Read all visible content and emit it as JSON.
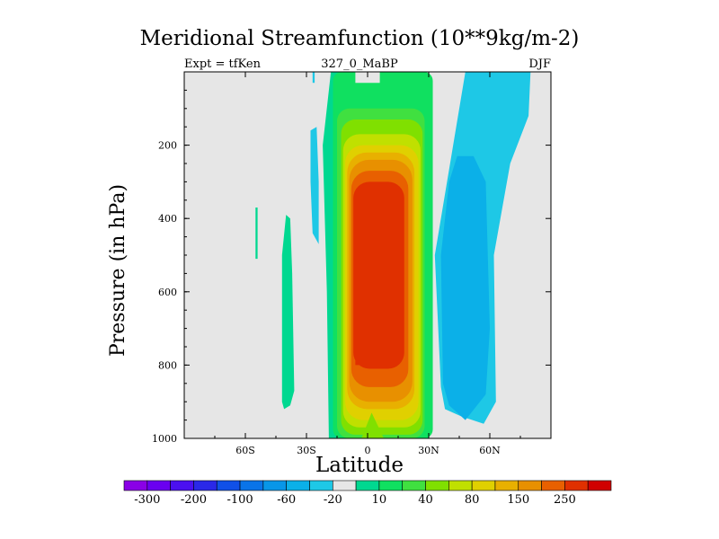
{
  "chart_data": {
    "type": "heatmap",
    "title": "Meridional Streamfunction (10**9kg/m-2)",
    "left_string": "Expt = tfKen",
    "center_string": "327_0_MaBP",
    "right_string": "DJF",
    "xlabel": "Latitude",
    "ylabel": "Pressure (in hPa)",
    "xlim": [
      -90,
      90
    ],
    "ylim": [
      1000,
      0
    ],
    "x_ticks": [
      -60,
      -30,
      0,
      30,
      60
    ],
    "x_tick_labels": [
      "60S",
      "30S",
      "0",
      "30N",
      "60N"
    ],
    "y_ticks": [
      200,
      400,
      600,
      800,
      1000
    ],
    "y_tick_labels": [
      "200",
      "400",
      "600",
      "800",
      "1000"
    ],
    "background_color": "#e6e6e6",
    "colorbar": {
      "levels": [
        -300,
        -250,
        -200,
        -150,
        -100,
        -80,
        -60,
        -40,
        -20,
        -10,
        10,
        20,
        40,
        60,
        80,
        100,
        150,
        200,
        250,
        300
      ],
      "labels": [
        "-300",
        "-200",
        "-100",
        "-60",
        "-20",
        "10",
        "40",
        "80",
        "150",
        "250"
      ],
      "colors": [
        "#8a00e6",
        "#6a00f0",
        "#4b10f0",
        "#2a28e8",
        "#1050e8",
        "#0a74e8",
        "#0896e8",
        "#0bb0e8",
        "#1ec8e6",
        "#e6e6e6",
        "#00d890",
        "#10e060",
        "#40e040",
        "#80e000",
        "#c0e000",
        "#e0d000",
        "#e8b000",
        "#e89000",
        "#e86000",
        "#e03000",
        "#d00000"
      ]
    },
    "features": [
      {
        "name": "NH Hadley cell",
        "sign": "positive",
        "x_range": [
          -12,
          26
        ],
        "p_range": [
          0,
          1000
        ],
        "max_level": 250
      },
      {
        "name": "NH Ferrel cell",
        "sign": "negative",
        "x_range": [
          30,
          70
        ],
        "p_range": [
          0,
          960
        ],
        "min_level": -20
      },
      {
        "name": "SH weak positive cell",
        "sign": "positive",
        "x_range": [
          -42,
          -36
        ],
        "p_range": [
          380,
          920
        ],
        "max_level": 10
      },
      {
        "name": "SH weak negative cell",
        "sign": "negative",
        "x_range": [
          -28,
          -24
        ],
        "p_range": [
          150,
          470
        ],
        "min_level": -20
      }
    ]
  }
}
